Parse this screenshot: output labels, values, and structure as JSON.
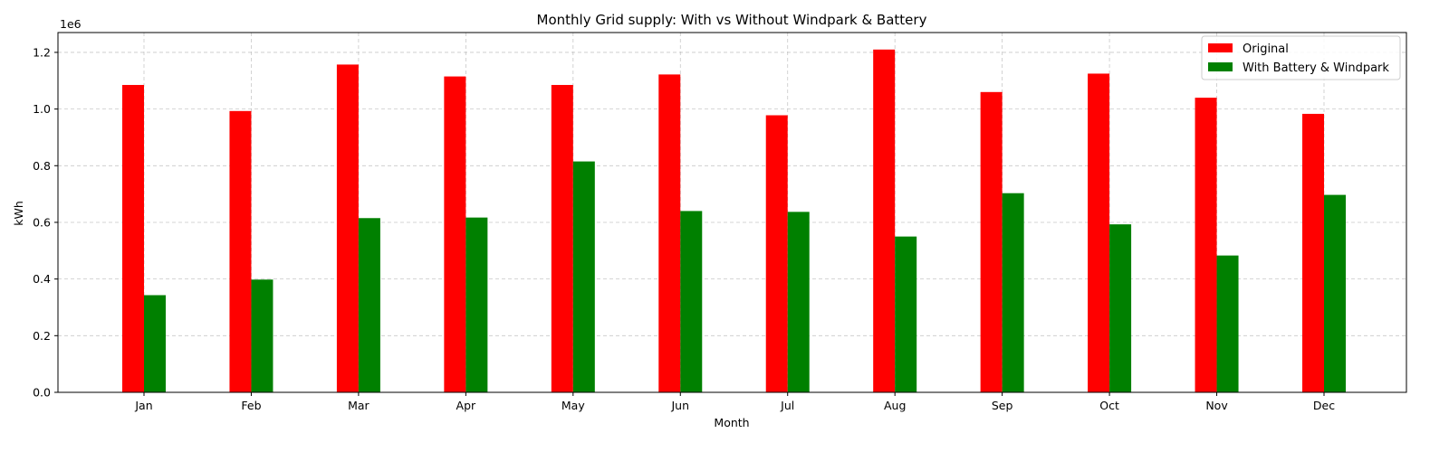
{
  "chart_data": {
    "type": "bar",
    "title": "Monthly Grid supply: With vs Without Windpark & Battery",
    "xlabel": "Month",
    "ylabel": "kWh",
    "y_offset_label": "1e6",
    "categories": [
      "Jan",
      "Feb",
      "Mar",
      "Apr",
      "May",
      "Jun",
      "Jul",
      "Aug",
      "Sep",
      "Oct",
      "Nov",
      "Dec"
    ],
    "series": [
      {
        "name": "Original",
        "color": "#ff0000",
        "values": [
          1085000,
          993000,
          1157000,
          1115000,
          1085000,
          1122000,
          978000,
          1210000,
          1060000,
          1125000,
          1040000,
          983000
        ]
      },
      {
        "name": "With Battery & Windpark",
        "color": "#008000",
        "values": [
          343000,
          398000,
          615000,
          617000,
          815000,
          640000,
          637000,
          550000,
          703000,
          593000,
          483000,
          697000
        ]
      }
    ],
    "ylim": [
      0,
      1270000
    ],
    "yticks": [
      0,
      200000,
      400000,
      600000,
      800000,
      1000000,
      1200000
    ],
    "ytick_labels": [
      "0.0",
      "0.2",
      "0.4",
      "0.6",
      "0.8",
      "1.0",
      "1.2"
    ],
    "grid": true,
    "legend_position": "top-right"
  }
}
